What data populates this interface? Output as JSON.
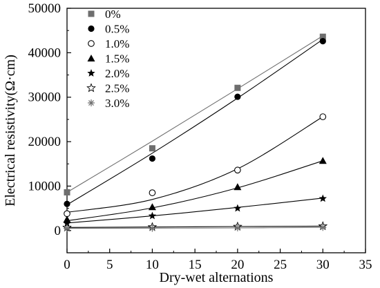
{
  "chart_data": {
    "type": "scatter",
    "title": "",
    "xlabel": "Dry-wet alternations",
    "ylabel": "Electrical resistivity(Ω·cm)",
    "xlim": [
      0,
      35
    ],
    "ylim": [
      -5000,
      50000
    ],
    "xticks": [
      0,
      5,
      10,
      15,
      20,
      25,
      30,
      35
    ],
    "yticks": [
      0,
      10000,
      20000,
      30000,
      40000,
      50000
    ],
    "grid": false,
    "legend_position": "top-left",
    "x": [
      0,
      10,
      20,
      30
    ],
    "series": [
      {
        "name": "0%",
        "marker": "filled-square",
        "color": "#6e6e6e",
        "values": [
          8600,
          18500,
          32100,
          43600
        ],
        "fit": [
          8600,
          20100,
          31900,
          43800
        ]
      },
      {
        "name": "0.5%",
        "marker": "filled-circle",
        "color": "#000000",
        "values": [
          6000,
          16200,
          30100,
          42600
        ],
        "fit": [
          5800,
          17400,
          29800,
          43000
        ]
      },
      {
        "name": "1.0%",
        "marker": "open-circle",
        "color": "#000000",
        "values": [
          3800,
          8500,
          13600,
          25600
        ],
        "fit": [
          4100,
          7000,
          13900,
          25600
        ]
      },
      {
        "name": "1.5%",
        "marker": "filled-triangle",
        "color": "#000000",
        "values": [
          2500,
          5300,
          9800,
          15700
        ],
        "fit": [
          2200,
          5100,
          9600,
          15700
        ]
      },
      {
        "name": "2.0%",
        "marker": "filled-star",
        "color": "#000000",
        "values": [
          1600,
          3300,
          5000,
          7200
        ],
        "fit": [
          1700,
          3300,
          5200,
          7300
        ]
      },
      {
        "name": "2.5%",
        "marker": "open-star",
        "color": "#000000",
        "values": [
          700,
          800,
          900,
          1000
        ],
        "fit": [
          700,
          800,
          900,
          1000
        ]
      },
      {
        "name": "3.0%",
        "marker": "asterisk",
        "color": "#6e6e6e",
        "values": [
          500,
          500,
          600,
          700
        ],
        "fit": [
          500,
          550,
          600,
          700
        ]
      }
    ]
  }
}
